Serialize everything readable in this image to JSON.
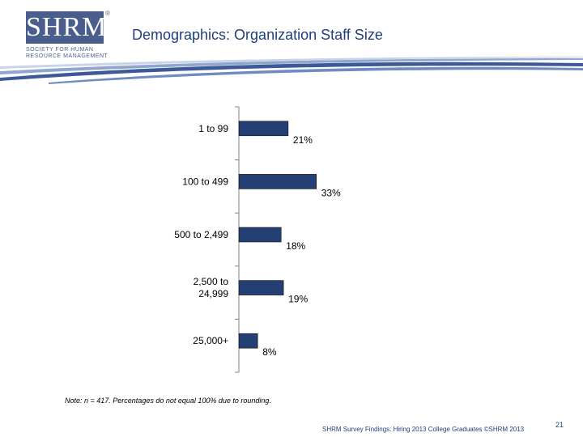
{
  "logo": {
    "text": "SHRM",
    "reg_mark": "®",
    "line1": "SOCIETY FOR HUMAN",
    "line2": "RESOURCE MANAGEMENT"
  },
  "slide": {
    "title": "Demographics: Organization Staff Size",
    "note": "Note: n = 417. Percentages do not equal 100% due to rounding.",
    "footer": "SHRM Survey Findings: Hiring 2013 College Graduates ©SHRM 2013",
    "page_number": "21"
  },
  "colors": {
    "bar": "#233f73",
    "axis": "#808080",
    "text": "#000000",
    "brand": "#4a5e8e"
  },
  "chart_data": {
    "type": "bar",
    "orientation": "horizontal",
    "title": "",
    "xlabel": "",
    "ylabel": "",
    "xlim": [
      0,
      100
    ],
    "grid": false,
    "categories": [
      [
        "1 to 99"
      ],
      [
        "100 to 499"
      ],
      [
        "500 to 2,499"
      ],
      [
        "2,500 to",
        "24,999"
      ],
      [
        "25,000+"
      ]
    ],
    "values": [
      21,
      33,
      18,
      19,
      8
    ],
    "labels": [
      "21%",
      "33%",
      "18%",
      "19%",
      "8%"
    ]
  }
}
